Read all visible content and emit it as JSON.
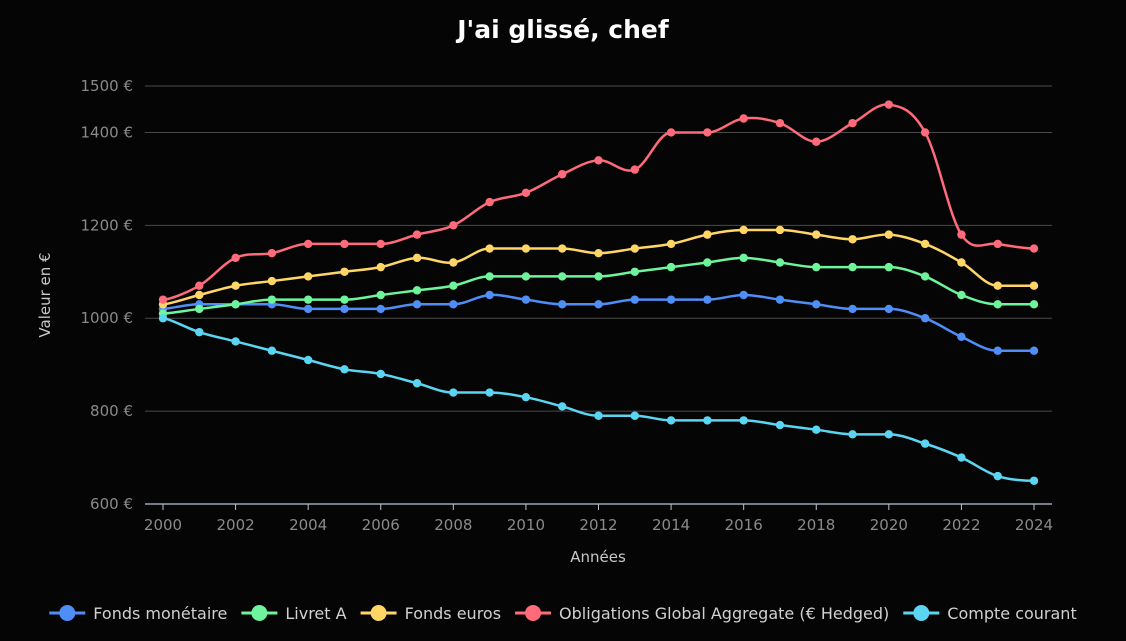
{
  "chart_data": {
    "type": "line",
    "title": "J'ai glissé, chef",
    "xlabel": "Années",
    "ylabel": "Valeur en €",
    "ylim": [
      600,
      1500
    ],
    "yticks": [
      600,
      800,
      1000,
      1200,
      1400,
      1500
    ],
    "ytick_suffix": " €",
    "xlim": [
      2000,
      2024
    ],
    "xticks": [
      2000,
      2002,
      2004,
      2006,
      2008,
      2010,
      2012,
      2014,
      2016,
      2018,
      2020,
      2022,
      2024
    ],
    "grid": true,
    "legend_position": "bottom",
    "x": [
      2000,
      2001,
      2002,
      2003,
      2004,
      2005,
      2006,
      2007,
      2008,
      2009,
      2010,
      2011,
      2012,
      2013,
      2014,
      2015,
      2016,
      2017,
      2018,
      2019,
      2020,
      2021,
      2022,
      2023,
      2024
    ],
    "series": [
      {
        "name": "Fonds monétaire",
        "color": "#4f8ef7",
        "values": [
          1020,
          1030,
          1030,
          1030,
          1020,
          1020,
          1020,
          1030,
          1030,
          1050,
          1040,
          1030,
          1030,
          1040,
          1040,
          1040,
          1050,
          1040,
          1030,
          1020,
          1020,
          1000,
          960,
          930,
          930
        ]
      },
      {
        "name": "Livret A",
        "color": "#6ef59c",
        "values": [
          1010,
          1020,
          1030,
          1040,
          1040,
          1040,
          1050,
          1060,
          1070,
          1090,
          1090,
          1090,
          1090,
          1100,
          1110,
          1120,
          1130,
          1120,
          1110,
          1110,
          1110,
          1090,
          1050,
          1030,
          1030
        ]
      },
      {
        "name": "Fonds euros",
        "color": "#ffd666",
        "values": [
          1030,
          1050,
          1070,
          1080,
          1090,
          1100,
          1110,
          1130,
          1120,
          1150,
          1150,
          1150,
          1140,
          1150,
          1160,
          1180,
          1190,
          1190,
          1180,
          1170,
          1180,
          1160,
          1120,
          1070,
          1070
        ]
      },
      {
        "name": "Obligations Global Aggregate (€ Hedged)",
        "color": "#ff6b7a",
        "values": [
          1040,
          1070,
          1130,
          1140,
          1160,
          1160,
          1160,
          1180,
          1200,
          1250,
          1270,
          1310,
          1340,
          1320,
          1400,
          1400,
          1430,
          1420,
          1380,
          1420,
          1460,
          1400,
          1180,
          1160,
          1150
        ]
      },
      {
        "name": "Compte courant",
        "color": "#5bd6f2",
        "values": [
          1000,
          970,
          950,
          930,
          910,
          890,
          880,
          860,
          840,
          840,
          830,
          810,
          790,
          790,
          780,
          780,
          780,
          770,
          760,
          750,
          750,
          730,
          700,
          660,
          650
        ]
      }
    ]
  }
}
